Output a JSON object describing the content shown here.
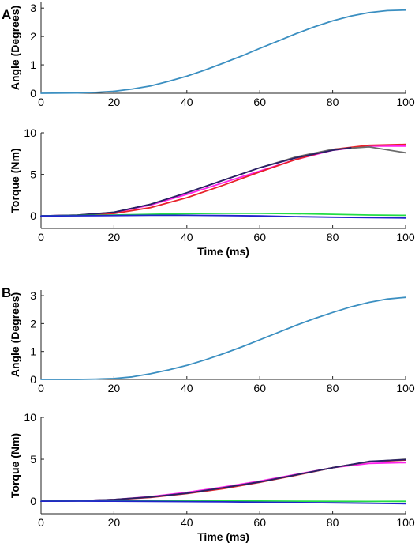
{
  "chart_data": [
    {
      "panel": "A",
      "type": "line",
      "ylabel": "Angle (Degrees)",
      "xlabel": "",
      "xlim": [
        0,
        100
      ],
      "ylim": [
        0,
        3.2
      ],
      "xticks": [
        0,
        20,
        40,
        60,
        80,
        100
      ],
      "yticks": [
        0,
        1,
        2,
        3
      ],
      "grid": false,
      "series": [
        {
          "color": "#3b8fc1",
          "x": [
            0,
            10,
            15,
            20,
            25,
            30,
            35,
            40,
            45,
            50,
            55,
            60,
            65,
            70,
            75,
            80,
            85,
            90,
            95,
            100
          ],
          "y": [
            0,
            0.01,
            0.03,
            0.07,
            0.15,
            0.26,
            0.42,
            0.6,
            0.82,
            1.06,
            1.31,
            1.58,
            1.84,
            2.1,
            2.34,
            2.55,
            2.72,
            2.84,
            2.91,
            2.93
          ]
        }
      ]
    },
    {
      "panel": "A",
      "type": "line",
      "ylabel": "Torque (Nm)",
      "xlabel": "Time (ms)",
      "xlim": [
        0,
        100
      ],
      "ylim": [
        -1.5,
        10
      ],
      "xticks": [
        0,
        20,
        40,
        60,
        80,
        100
      ],
      "yticks": [
        0,
        5,
        10
      ],
      "grid": false,
      "series": [
        {
          "color": "#ff22ee",
          "x": [
            0,
            10,
            20,
            30,
            40,
            50,
            60,
            70,
            80,
            90,
            100
          ],
          "y": [
            0,
            0.1,
            0.4,
            1.3,
            2.6,
            4.0,
            5.4,
            6.8,
            7.9,
            8.4,
            8.4
          ]
        },
        {
          "color": "#e8222a",
          "x": [
            0,
            10,
            20,
            30,
            40,
            50,
            60,
            70,
            80,
            90,
            100
          ],
          "y": [
            0,
            0.08,
            0.3,
            1.0,
            2.2,
            3.7,
            5.3,
            6.8,
            8.0,
            8.5,
            8.6
          ]
        },
        {
          "color": "#6b6b6b",
          "x": [
            0,
            10,
            20,
            30,
            40,
            50,
            60,
            70,
            80,
            90,
            100
          ],
          "y": [
            0,
            0.1,
            0.45,
            1.4,
            2.8,
            4.3,
            5.8,
            7.1,
            8.0,
            8.3,
            7.6
          ]
        },
        {
          "color": "#2a1f66",
          "x": [
            0,
            10,
            20,
            30,
            40,
            50,
            60,
            70,
            80,
            85
          ],
          "y": [
            0,
            0.1,
            0.45,
            1.4,
            2.8,
            4.3,
            5.8,
            7.0,
            7.9,
            8.2
          ]
        },
        {
          "color": "#22dd44",
          "x": [
            0,
            10,
            20,
            30,
            40,
            50,
            60,
            70,
            80,
            90,
            100
          ],
          "y": [
            0,
            0.05,
            0.12,
            0.2,
            0.28,
            0.32,
            0.32,
            0.28,
            0.2,
            0.12,
            0.08
          ]
        },
        {
          "color": "#2222cc",
          "x": [
            0,
            10,
            20,
            30,
            40,
            50,
            60,
            70,
            80,
            90,
            100
          ],
          "y": [
            0,
            0.02,
            0.05,
            0.08,
            0.08,
            0.05,
            0,
            -0.08,
            -0.15,
            -0.2,
            -0.25
          ]
        }
      ]
    },
    {
      "panel": "B",
      "type": "line",
      "ylabel": "Angle (Degrees)",
      "xlabel": "",
      "xlim": [
        0,
        100
      ],
      "ylim": [
        0,
        3.2
      ],
      "xticks": [
        0,
        20,
        40,
        60,
        80,
        100
      ],
      "yticks": [
        0,
        1,
        2,
        3
      ],
      "grid": false,
      "series": [
        {
          "color": "#3b8fc1",
          "x": [
            0,
            10,
            15,
            20,
            25,
            30,
            35,
            40,
            45,
            50,
            55,
            60,
            65,
            70,
            75,
            80,
            85,
            90,
            95,
            100
          ],
          "y": [
            0,
            0.0,
            0.01,
            0.03,
            0.09,
            0.2,
            0.34,
            0.5,
            0.7,
            0.92,
            1.16,
            1.42,
            1.68,
            1.94,
            2.18,
            2.4,
            2.6,
            2.76,
            2.88,
            2.94
          ]
        }
      ]
    },
    {
      "panel": "B",
      "type": "line",
      "ylabel": "Torque (Nm)",
      "xlabel": "Time (ms)",
      "xlim": [
        0,
        100
      ],
      "ylim": [
        -1.5,
        10
      ],
      "xticks": [
        0,
        20,
        40,
        60,
        80,
        100
      ],
      "yticks": [
        0,
        5,
        10
      ],
      "grid": false,
      "series": [
        {
          "color": "#ff22ee",
          "x": [
            0,
            10,
            20,
            30,
            40,
            50,
            60,
            70,
            80,
            90,
            100
          ],
          "y": [
            0,
            0.05,
            0.2,
            0.55,
            1.05,
            1.7,
            2.4,
            3.2,
            4.0,
            4.5,
            4.6
          ]
        },
        {
          "color": "#e8222a",
          "x": [
            0,
            10,
            20,
            30,
            40,
            50,
            60,
            70,
            80,
            90,
            100
          ],
          "y": [
            0,
            0.04,
            0.18,
            0.45,
            0.9,
            1.5,
            2.25,
            3.1,
            4.0,
            4.7,
            4.9
          ]
        },
        {
          "color": "#6b6b6b",
          "x": [
            0,
            10,
            20,
            30,
            40,
            50,
            60,
            70,
            80,
            90,
            100
          ],
          "y": [
            0,
            0.05,
            0.2,
            0.5,
            0.95,
            1.6,
            2.3,
            3.15,
            4.0,
            4.7,
            5.0
          ]
        },
        {
          "color": "#2a1f66",
          "x": [
            0,
            10,
            20,
            30,
            40,
            50,
            60,
            70,
            80,
            90,
            100
          ],
          "y": [
            0,
            0.05,
            0.2,
            0.5,
            0.95,
            1.6,
            2.3,
            3.15,
            4.0,
            4.75,
            4.95
          ]
        },
        {
          "color": "#22dd44",
          "x": [
            0,
            10,
            20,
            30,
            40,
            50,
            60,
            70,
            80,
            90,
            100
          ],
          "y": [
            0,
            0.02,
            0.04,
            0.05,
            0.05,
            0.04,
            0.02,
            0.0,
            -0.02,
            -0.03,
            -0.02
          ]
        },
        {
          "color": "#2222cc",
          "x": [
            0,
            10,
            20,
            30,
            40,
            50,
            60,
            70,
            80,
            90,
            100
          ],
          "y": [
            0,
            0.01,
            0.0,
            -0.02,
            -0.05,
            -0.08,
            -0.12,
            -0.16,
            -0.2,
            -0.25,
            -0.3
          ]
        }
      ]
    }
  ]
}
